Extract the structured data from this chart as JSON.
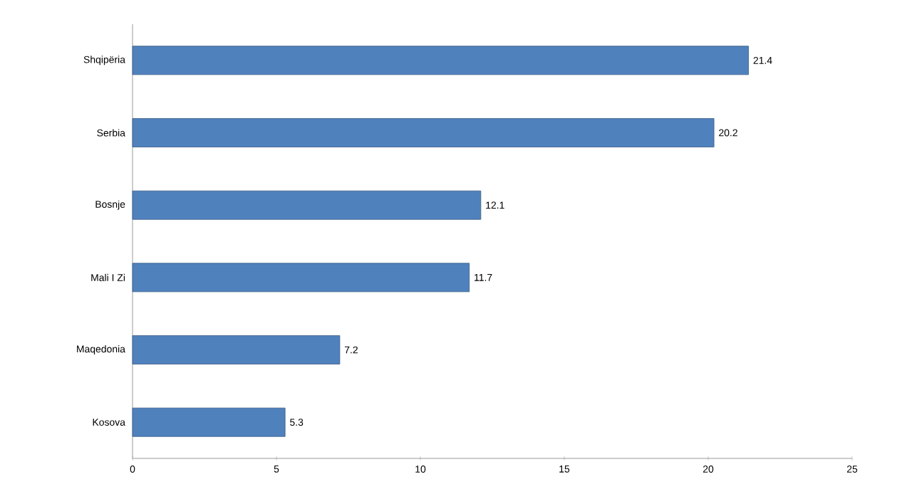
{
  "chart_data": {
    "type": "bar",
    "orientation": "horizontal",
    "categories": [
      "Shqipëria",
      "Serbia",
      "Bosnje",
      "Mali I Zi",
      "Maqedonia",
      "Kosova"
    ],
    "values": [
      21.4,
      20.2,
      12.1,
      11.7,
      7.2,
      5.3
    ],
    "color": "#4f81bd",
    "xlim": [
      0,
      25
    ],
    "xticks": [
      0,
      5,
      10,
      15,
      20,
      25
    ],
    "data_labels": true
  }
}
